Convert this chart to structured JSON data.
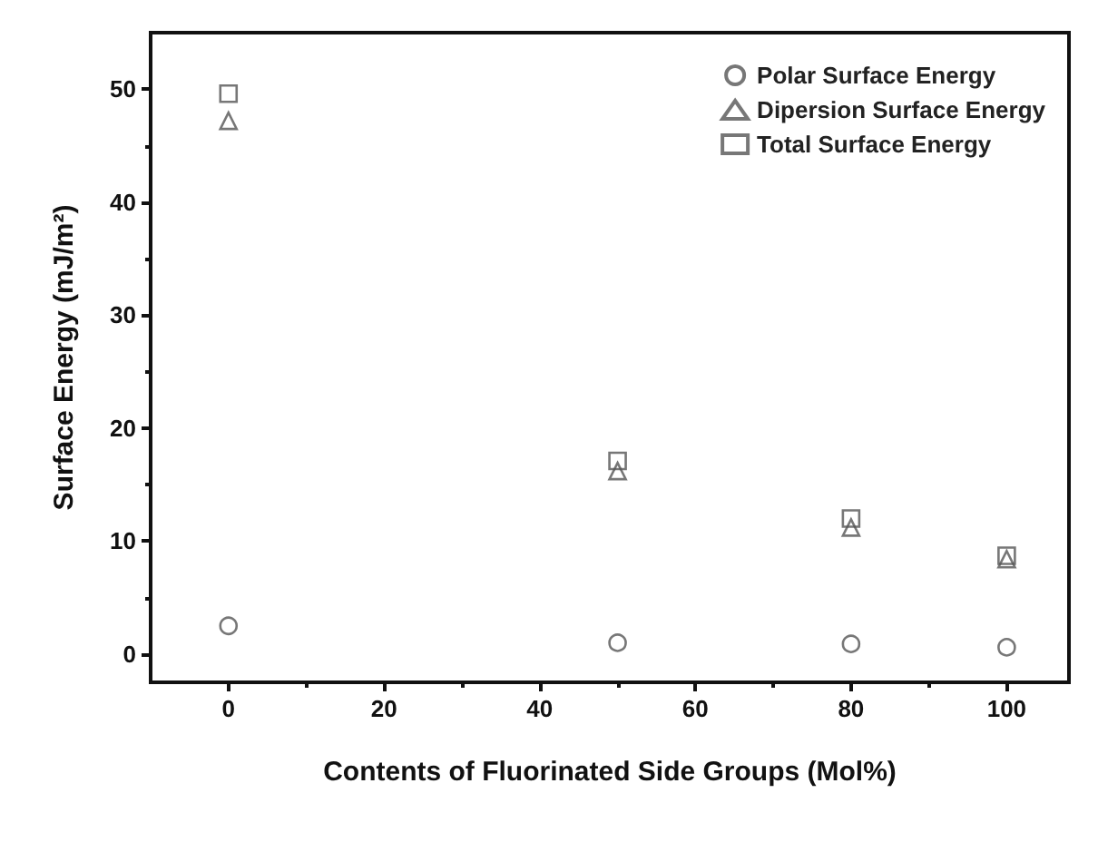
{
  "chart_data": {
    "type": "scatter",
    "xlabel": "Contents of Fluorinated Side Groups (Mol%)",
    "ylabel": "Surface Energy (mJ/m²)",
    "x": [
      0,
      50,
      80,
      100
    ],
    "series": [
      {
        "name": "Polar Surface Energy",
        "color": "#555555",
        "marker": "circle",
        "values": [
          2.5,
          1.0,
          0.9,
          0.6
        ]
      },
      {
        "name": "Dipersion Surface Energy",
        "color": "#555555",
        "marker": "triangle",
        "values": [
          47.2,
          16.2,
          11.2,
          8.4
        ]
      },
      {
        "name": "Total Surface Energy",
        "color": "#555555",
        "marker": "square",
        "values": [
          49.6,
          17.1,
          12.0,
          8.7
        ]
      }
    ],
    "xlim": [
      -10,
      108
    ],
    "xticks": [
      0,
      20,
      40,
      60,
      80,
      100
    ],
    "ylim": [
      -2.5,
      55
    ],
    "yticks": [
      0,
      10,
      20,
      30,
      40,
      50
    ],
    "legend": "top right"
  }
}
